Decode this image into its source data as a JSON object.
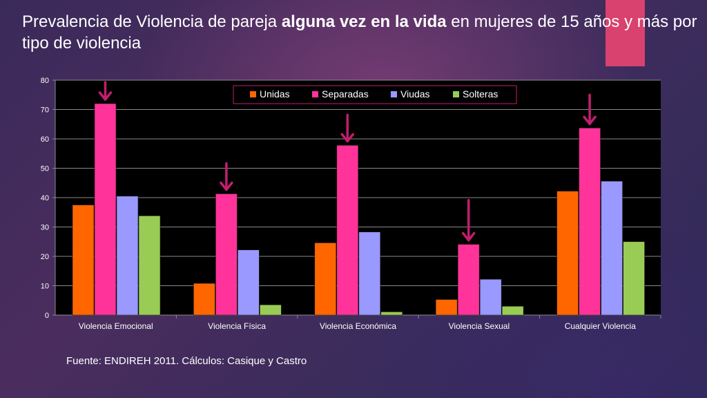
{
  "slide": {
    "title_part1": "Prevalencia de Violencia de  pareja ",
    "title_bold": "alguna vez en la vida",
    "title_part2": " en mujeres de 15 años y más por tipo de violencia",
    "source": "Fuente: ENDIREH 2011. Cálculos:  Casique y Castro",
    "accent_color": "#d9416f"
  },
  "chart_data": {
    "type": "bar",
    "categories": [
      "Violencia Emocional",
      "Violencia Física",
      "Violencia Económica",
      "Violencia Sexual",
      "Cualquier Violencia"
    ],
    "series": [
      {
        "name": "Unidas",
        "values": [
          37.5,
          10.8,
          24.6,
          5.3,
          42.2
        ],
        "color": "#ff6600"
      },
      {
        "name": "Separadas",
        "values": [
          72.0,
          41.3,
          57.8,
          24.1,
          63.7
        ],
        "color": "#ff3399"
      },
      {
        "name": "Viudas",
        "values": [
          40.5,
          22.2,
          28.3,
          12.2,
          45.6
        ],
        "color": "#9999ff"
      },
      {
        "name": "Solteras",
        "values": [
          33.8,
          3.5,
          1.1,
          3.0,
          25.0
        ],
        "color": "#99cc55"
      }
    ],
    "ylim": [
      0,
      80
    ],
    "yticks": [
      0,
      10,
      20,
      30,
      40,
      50,
      60,
      70,
      80
    ],
    "grid": true,
    "legend_position": "top",
    "annotations": "arrows marking the Separadas bar in each category",
    "arrow_color": "#c21e6e"
  }
}
